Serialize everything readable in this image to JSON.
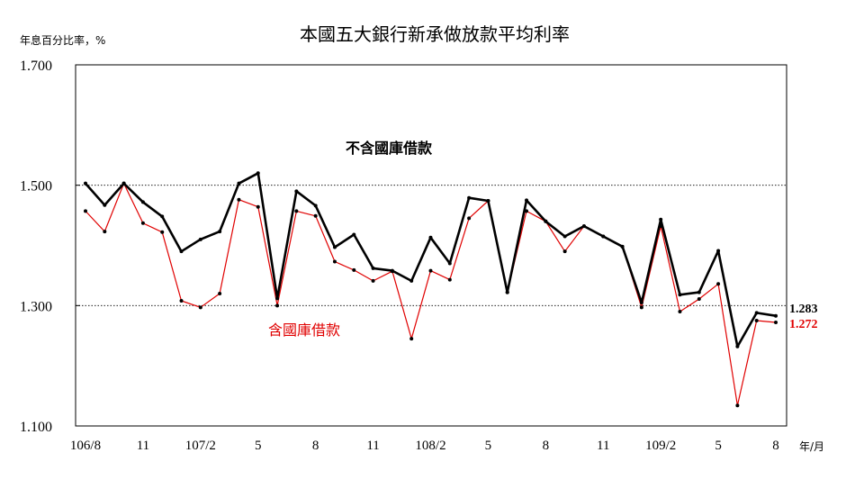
{
  "chart_data": {
    "type": "line",
    "title": "本國五大銀行新承做放款平均利率",
    "ylabel": "年息百分比率，%",
    "xlabel": "年/月",
    "ylim": [
      1.1,
      1.7
    ],
    "yticks": [
      "1.700",
      "1.500",
      "1.300",
      "1.100"
    ],
    "grid": "horizontal dotted at 1.300 and 1.500",
    "x_tick_labels": [
      "106/8",
      "11",
      "107/2",
      "5",
      "8",
      "11",
      "108/2",
      "5",
      "8",
      "11",
      "109/2",
      "5",
      "8"
    ],
    "x_tick_index": [
      0,
      3,
      6,
      9,
      12,
      15,
      18,
      21,
      24,
      27,
      30,
      33,
      36
    ],
    "series": [
      {
        "name": "不含國庫借款",
        "color": "#000000",
        "values": [
          1.503,
          1.467,
          1.503,
          1.472,
          1.448,
          1.39,
          1.41,
          1.423,
          1.503,
          1.52,
          1.312,
          1.49,
          1.466,
          1.397,
          1.418,
          1.362,
          1.358,
          1.341,
          1.413,
          1.37,
          1.479,
          1.474,
          1.322,
          1.475,
          1.44,
          1.415,
          1.432,
          1.415,
          1.398,
          1.305,
          1.443,
          1.318,
          1.322,
          1.391,
          1.232,
          1.288,
          1.283
        ],
        "end_label": "1.283"
      },
      {
        "name": "含國庫借款",
        "color": "#e00000",
        "values": [
          1.457,
          1.423,
          1.503,
          1.437,
          1.422,
          1.308,
          1.297,
          1.32,
          1.476,
          1.464,
          1.3,
          1.457,
          1.449,
          1.373,
          1.359,
          1.341,
          1.357,
          1.245,
          1.358,
          1.343,
          1.445,
          1.474,
          1.322,
          1.457,
          1.44,
          1.39,
          1.432,
          1.415,
          1.398,
          1.297,
          1.432,
          1.29,
          1.311,
          1.336,
          1.134,
          1.275,
          1.272
        ],
        "end_label": "1.272"
      }
    ]
  }
}
